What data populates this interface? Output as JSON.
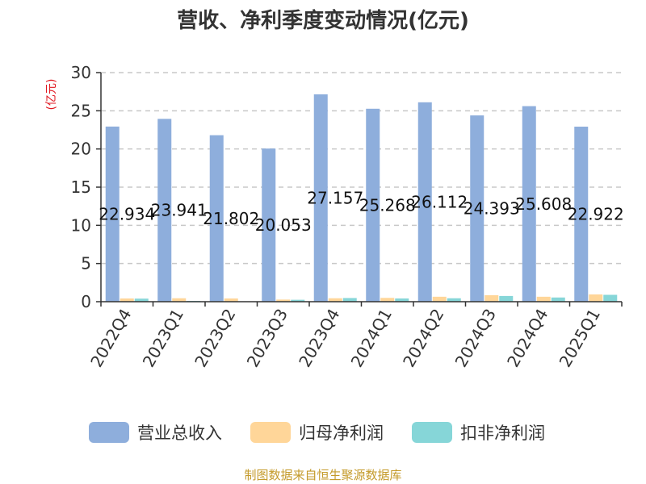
{
  "chart_data": {
    "type": "bar",
    "title": "营收、净利季度变动情况(亿元)",
    "ylabel": "(亿元)",
    "xlabel": "",
    "ylim": [
      0,
      30
    ],
    "yticks": [
      0,
      5,
      10,
      15,
      20,
      25,
      30
    ],
    "grid": true,
    "legend_position": "bottom",
    "categories": [
      "2022Q4",
      "2023Q1",
      "2023Q2",
      "2023Q3",
      "2023Q4",
      "2024Q1",
      "2024Q2",
      "2024Q3",
      "2024Q4",
      "2025Q1"
    ],
    "series": [
      {
        "name": "营业总收入",
        "color": "#8eaedc",
        "values": [
          22.934,
          23.941,
          21.802,
          20.053,
          27.157,
          25.268,
          26.112,
          24.393,
          25.608,
          22.922
        ],
        "labels": [
          "22.934",
          "23.941",
          "21.802",
          "20.053",
          "27.157",
          "25.268",
          "26.112",
          "24.393",
          "25.608",
          "22.922"
        ]
      },
      {
        "name": "归母净利润",
        "color": "#ffd699",
        "values": [
          0.42,
          0.45,
          0.42,
          0.28,
          0.45,
          0.5,
          0.65,
          0.85,
          0.65,
          0.95
        ]
      },
      {
        "name": "扣非净利润",
        "color": "#86d6d8",
        "values": [
          0.4,
          0.1,
          0.05,
          0.25,
          0.48,
          0.42,
          0.45,
          0.75,
          0.55,
          0.9
        ]
      }
    ],
    "source": "制图数据来自恒生聚源数据库"
  }
}
